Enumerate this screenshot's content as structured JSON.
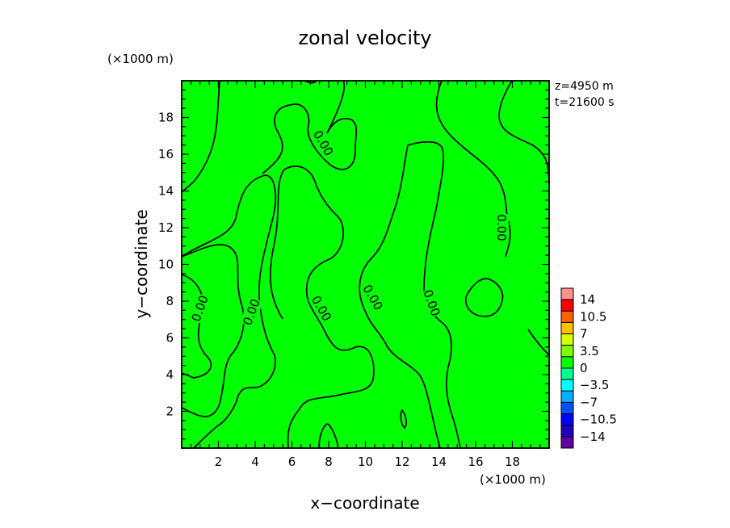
{
  "chart_data": {
    "type": "heatmap",
    "title": "zonal velocity",
    "xlabel": "x−coordinate",
    "ylabel": "y−coordinate",
    "x_unit": "(×1000 m)",
    "y_unit": "(×1000 m)",
    "xlim": [
      0,
      20
    ],
    "ylim": [
      0,
      20
    ],
    "x_ticks": [
      2,
      4,
      6,
      8,
      10,
      12,
      14,
      16,
      18
    ],
    "y_ticks": [
      2,
      4,
      6,
      8,
      10,
      12,
      14,
      16,
      18
    ],
    "annotations": [
      "z=4950 m",
      "t=21600 s"
    ],
    "field_color": "#00ff00",
    "contour_level_label": "0.00",
    "contour_labels": [
      {
        "text": "0.00",
        "x": 7.7,
        "y": 16.6,
        "angle": 60
      },
      {
        "text": "0.00",
        "x": 17.4,
        "y": 12.0,
        "angle": 90
      },
      {
        "text": "0.00",
        "x": 1.0,
        "y": 7.6,
        "angle": -70
      },
      {
        "text": "0.00",
        "x": 3.8,
        "y": 7.4,
        "angle": -70
      },
      {
        "text": "0.00",
        "x": 7.6,
        "y": 7.6,
        "angle": 60
      },
      {
        "text": "0.00",
        "x": 10.4,
        "y": 8.2,
        "angle": 60
      },
      {
        "text": "0.00",
        "x": 13.6,
        "y": 7.9,
        "angle": 70
      }
    ],
    "colorbar": {
      "labels": [
        "14",
        "10.5",
        "7",
        "3.5",
        "0",
        "−3.5",
        "−7",
        "−10.5",
        "−14"
      ],
      "colors": [
        "#ff9090",
        "#ff0000",
        "#ff6000",
        "#ffc000",
        "#d8ff00",
        "#80ff00",
        "#00ff00",
        "#00ff90",
        "#00ffff",
        "#00b0ff",
        "#0050ff",
        "#0000ff",
        "#2000c0",
        "#6000a0"
      ]
    }
  }
}
